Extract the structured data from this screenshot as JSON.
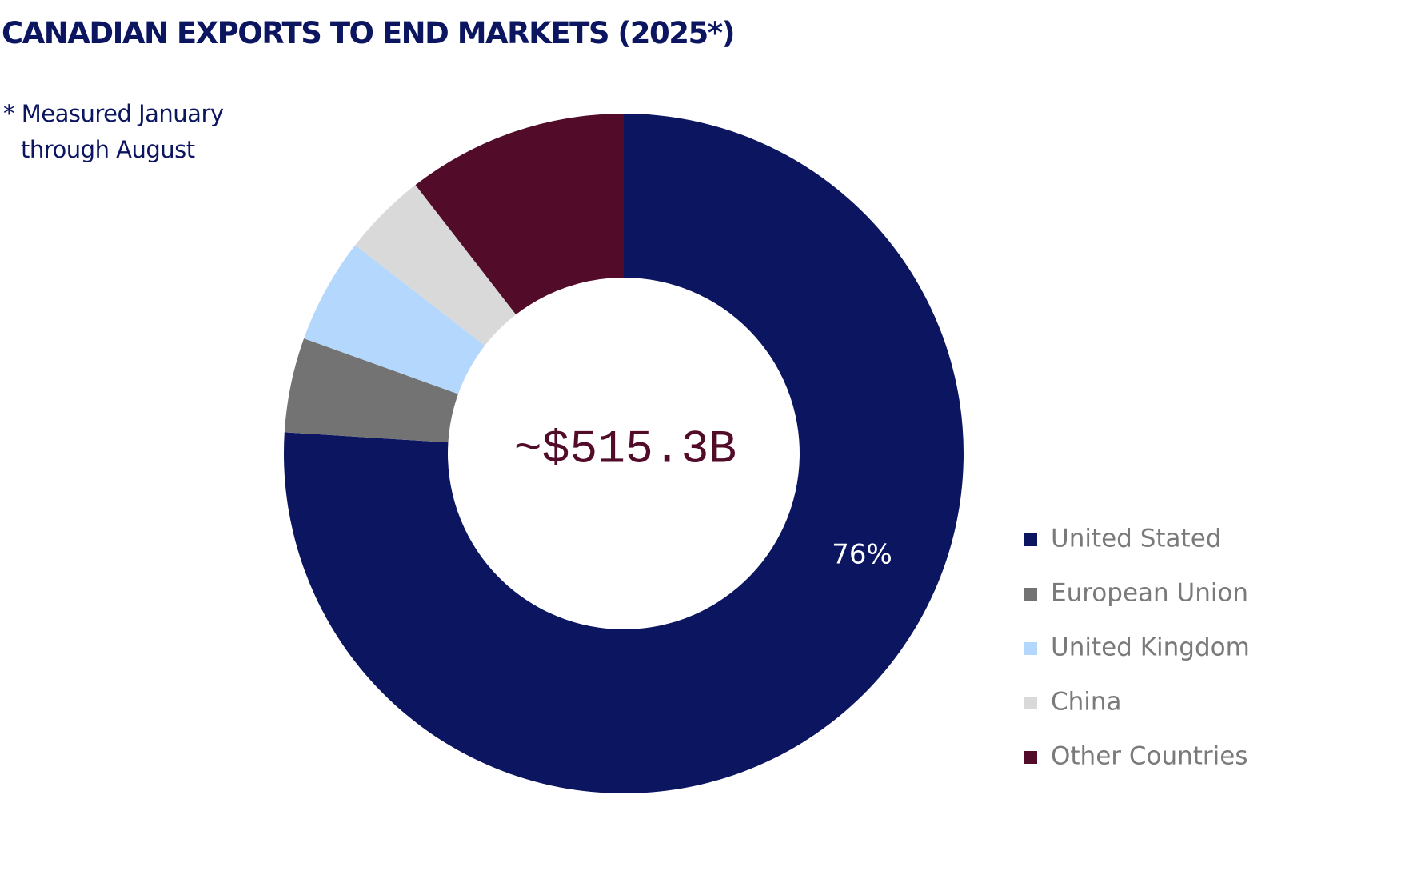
{
  "chart_data": {
    "type": "donut",
    "title": "CANADIAN EXPORTS TO END MARKETS (2025*)",
    "note": "* Measured January through August",
    "center_label": "~$515.3B",
    "categories": [
      "United Stated",
      "European Union",
      "United Kingdom",
      "China",
      "Other Countries"
    ],
    "values": [
      76,
      4.5,
      5,
      4,
      10.5
    ],
    "value_labels": [
      "76%",
      null,
      null,
      null,
      null
    ],
    "colors": [
      "#0b1560",
      "#737373",
      "#b3d7fd",
      "#d9d9d9",
      "#520c2a"
    ],
    "legend": "right"
  }
}
